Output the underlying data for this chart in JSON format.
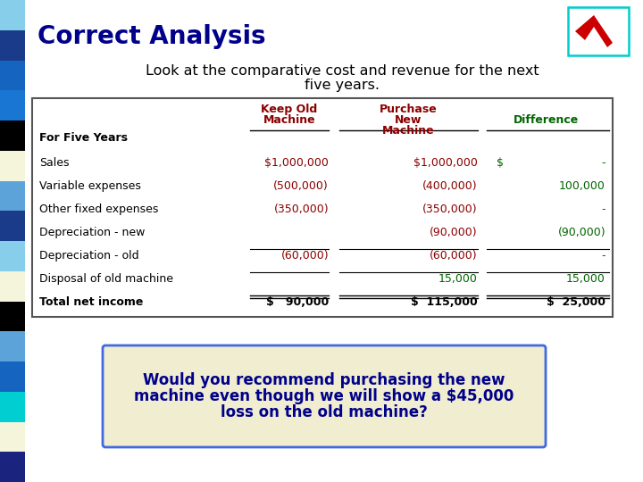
{
  "title": "Correct Analysis",
  "subtitle_line1": "Look at the comparative cost and revenue for the next",
  "subtitle_line2": "five years.",
  "title_color": "#00008B",
  "subtitle_color": "#000000",
  "bg_color": "#FFFFFF",
  "left_bar_colors": [
    "#87CEEB",
    "#1a3a8a",
    "#1565c0",
    "#1976d2",
    "#000000",
    "#f5f5dc",
    "#5ba3d9",
    "#1a3a8a",
    "#87CEEB",
    "#f5f5dc",
    "#000000",
    "#5ba3d9",
    "#1565c0",
    "#00CED1",
    "#f5f5dc",
    "#1a237e"
  ],
  "table_header_color": "#8B0000",
  "table_header_col4_color": "#006400",
  "rows": [
    {
      "label": "Sales",
      "col2": "$1,000,000",
      "col3": "$1,000,000",
      "col4_parts": [
        "$",
        "-"
      ],
      "col2_color": "#8B0000",
      "col3_color": "#8B0000",
      "col4_color": "#006400"
    },
    {
      "label": "Variable expenses",
      "col2": "(500,000)",
      "col3": "(400,000)",
      "col4_parts": [
        "100,000"
      ],
      "col2_color": "#8B0000",
      "col3_color": "#8B0000",
      "col4_color": "#006400"
    },
    {
      "label": "Other fixed expenses",
      "col2": "(350,000)",
      "col3": "(350,000)",
      "col4_parts": [
        "-"
      ],
      "col2_color": "#8B0000",
      "col3_color": "#8B0000",
      "col4_color": "#006400"
    },
    {
      "label": "Depreciation - new",
      "col2": "",
      "col3": "(90,000)",
      "col4_parts": [
        "(90,000)"
      ],
      "col2_color": "#8B0000",
      "col3_color": "#8B0000",
      "col4_color": "#006400"
    },
    {
      "label": "Depreciation - old",
      "col2": "(60,000)",
      "col3": "(60,000)",
      "col4_parts": [
        "-"
      ],
      "col2_color": "#8B0000",
      "col3_color": "#8B0000",
      "col4_color": "#006400"
    },
    {
      "label": "Disposal of old machine",
      "col2": "",
      "col3": "15,000",
      "col4_parts": [
        "15,000"
      ],
      "col2_color": "#8B0000",
      "col3_color": "#006400",
      "col4_color": "#006400"
    },
    {
      "label": "Total net income",
      "col2": "$   90,000",
      "col3": "$  115,000",
      "col4_parts": [
        "$  25,000"
      ],
      "col2_color": "#000000",
      "col3_color": "#000000",
      "col4_color": "#000000",
      "bold": true
    }
  ],
  "bottom_text_line1": "Would you recommend purchasing the new",
  "bottom_text_line2": "machine even though we will show a $45,000",
  "bottom_text_line3": "loss on the old machine?",
  "bottom_text_color": "#00008B",
  "bottom_box_fill": "#F0EDD0",
  "bottom_box_border": "#4169E1"
}
